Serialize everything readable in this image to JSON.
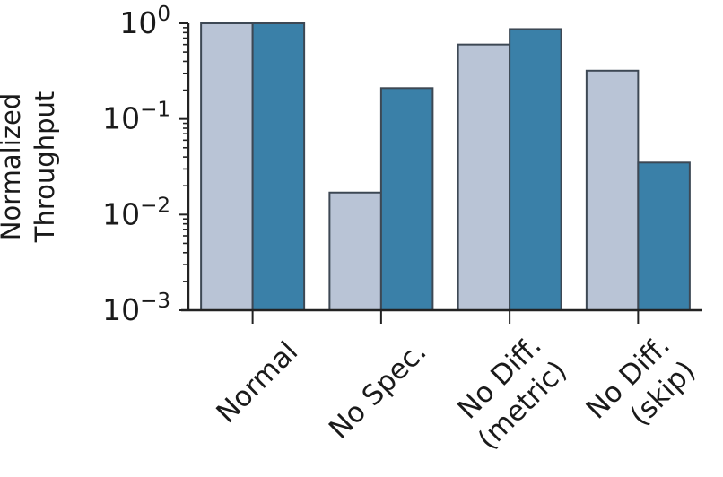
{
  "figure": {
    "background": "#ffffff",
    "text_color": "#1a1a1a",
    "axis_color": "#222222"
  },
  "chart_data": {
    "type": "bar",
    "title": "",
    "xlabel": "",
    "ylabel_lines": [
      "Normalized",
      "Throughput"
    ],
    "yscale": "log",
    "ylim": [
      0.001,
      1.0
    ],
    "y_tick_base": "10",
    "y_ticks": [
      {
        "exp": "0",
        "value": 1.0
      },
      {
        "exp": "−1",
        "value": 0.1
      },
      {
        "exp": "−2",
        "value": 0.01
      },
      {
        "exp": "−3",
        "value": 0.001
      }
    ],
    "minor_ticks": true,
    "grid": false,
    "legend": "none",
    "categories": [
      {
        "lines": [
          "Normal"
        ]
      },
      {
        "lines": [
          "No Spec."
        ]
      },
      {
        "lines": [
          "No Diff.",
          "(metric)"
        ]
      },
      {
        "lines": [
          "No Diff.",
          "(skip)"
        ]
      }
    ],
    "series": [
      {
        "name": "light-blue",
        "color": "#b9c4d6",
        "values": [
          1.0,
          0.017,
          0.6,
          0.32
        ]
      },
      {
        "name": "dark-blue",
        "color": "#3a80a8",
        "values": [
          1.0,
          0.21,
          0.87,
          0.035
        ]
      }
    ],
    "bar_edge_color": "#3d4854"
  }
}
